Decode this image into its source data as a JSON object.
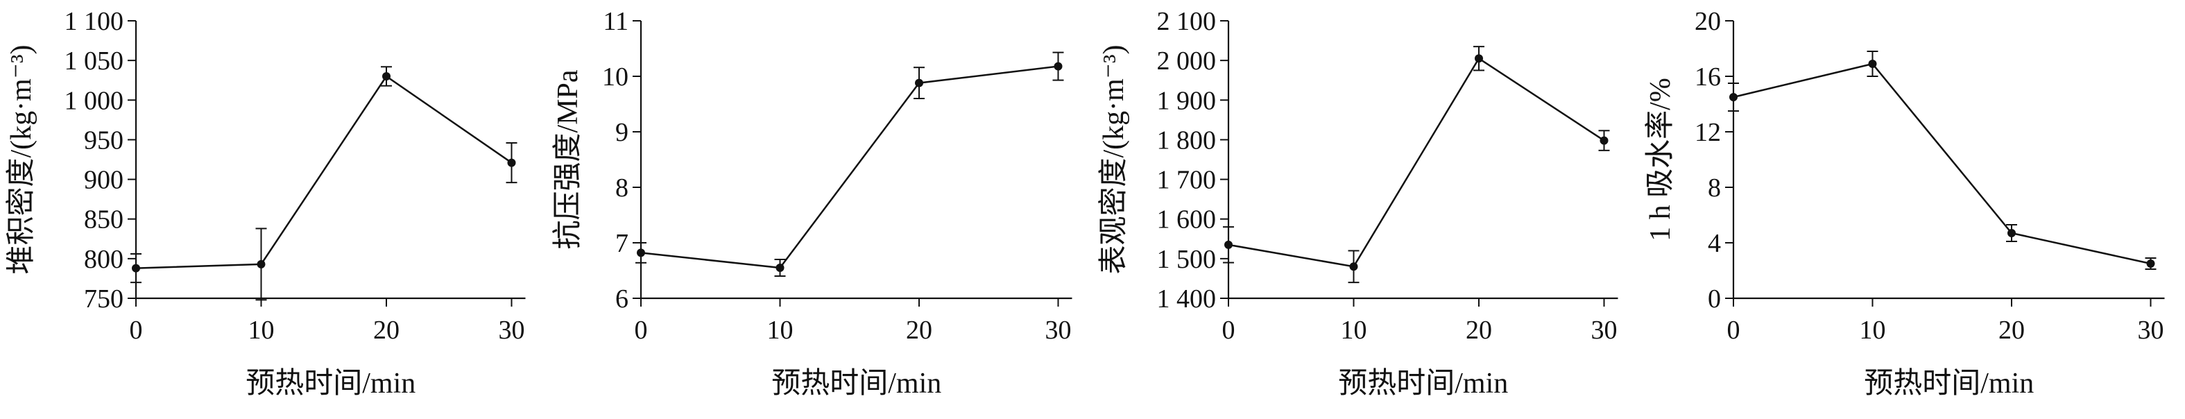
{
  "figure": {
    "background": "#ffffff",
    "line_color": "#111111",
    "marker": "circle",
    "error_bars": true
  },
  "chart_data": [
    {
      "type": "line",
      "id": "bulk-density",
      "title": "",
      "xlabel": "预热时间/min",
      "ylabel": "堆积密度/(kg·m⁻³)",
      "x": [
        0,
        10,
        20,
        30
      ],
      "y": [
        788,
        793,
        1030,
        921
      ],
      "yerr": [
        18,
        45,
        12,
        25
      ],
      "xlim": [
        0,
        30
      ],
      "ylim": [
        750,
        1100
      ],
      "xticks": [
        0,
        10,
        20,
        30
      ],
      "xtick_labels": [
        "0",
        "10",
        "20",
        "30"
      ],
      "yticks": [
        750,
        800,
        850,
        900,
        950,
        1000,
        1050,
        1100
      ],
      "ytick_labels": [
        "750",
        "800",
        "850",
        "900",
        "950",
        "1 000",
        "1 050",
        "1 100"
      ],
      "grid": "off",
      "legend": "none",
      "line_color": "#111111"
    },
    {
      "type": "line",
      "id": "compressive-strength",
      "title": "",
      "xlabel": "预热时间/min",
      "ylabel": "抗压强度/MPa",
      "x": [
        0,
        10,
        20,
        30
      ],
      "y": [
        6.82,
        6.55,
        9.88,
        10.18
      ],
      "yerr": [
        0.18,
        0.15,
        0.28,
        0.25
      ],
      "xlim": [
        0,
        30
      ],
      "ylim": [
        6,
        11
      ],
      "xticks": [
        0,
        10,
        20,
        30
      ],
      "xtick_labels": [
        "0",
        "10",
        "20",
        "30"
      ],
      "yticks": [
        6,
        7,
        8,
        9,
        10,
        11
      ],
      "ytick_labels": [
        "6",
        "7",
        "8",
        "9",
        "10",
        "11"
      ],
      "grid": "off",
      "legend": "none",
      "line_color": "#111111"
    },
    {
      "type": "line",
      "id": "apparent-density",
      "title": "",
      "xlabel": "预热时间/min",
      "ylabel": "表观密度/(kg·m⁻³)",
      "x": [
        0,
        10,
        20,
        30
      ],
      "y": [
        1535,
        1480,
        2005,
        1798
      ],
      "yerr": [
        45,
        40,
        30,
        25
      ],
      "xlim": [
        0,
        30
      ],
      "ylim": [
        1400,
        2100
      ],
      "xticks": [
        0,
        10,
        20,
        30
      ],
      "xtick_labels": [
        "0",
        "10",
        "20",
        "30"
      ],
      "yticks": [
        1400,
        1500,
        1600,
        1700,
        1800,
        1900,
        2000,
        2100
      ],
      "ytick_labels": [
        "1 400",
        "1 500",
        "1 600",
        "1 700",
        "1 800",
        "1 900",
        "2 000",
        "2 100"
      ],
      "grid": "off",
      "legend": "none",
      "line_color": "#111111"
    },
    {
      "type": "line",
      "id": "water-absorption",
      "title": "",
      "xlabel": "预热时间/min",
      "ylabel": "1 h 吸水率/%",
      "x": [
        0,
        10,
        20,
        30
      ],
      "y": [
        14.5,
        16.9,
        4.7,
        2.5
      ],
      "yerr": [
        1.0,
        0.9,
        0.6,
        0.4
      ],
      "xlim": [
        0,
        30
      ],
      "ylim": [
        0,
        20
      ],
      "xticks": [
        0,
        10,
        20,
        30
      ],
      "xtick_labels": [
        "0",
        "10",
        "20",
        "30"
      ],
      "yticks": [
        0,
        4,
        8,
        12,
        16,
        20
      ],
      "ytick_labels": [
        "0",
        "4",
        "8",
        "12",
        "16",
        "20"
      ],
      "grid": "off",
      "legend": "none",
      "line_color": "#111111"
    }
  ]
}
